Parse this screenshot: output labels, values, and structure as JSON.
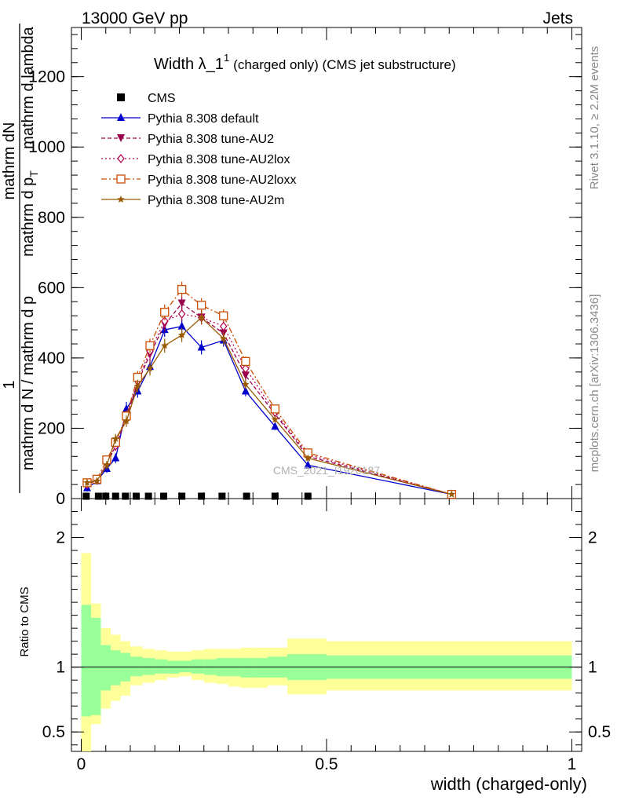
{
  "header": {
    "left": "13000 GeV pp",
    "right": "Jets"
  },
  "side_texts": {
    "rivet": "Rivet 3.1.10, ≥ 2.2M events",
    "mcplots": "mcplots.cern.ch [arXiv:1306.3436]"
  },
  "watermark": "CMS_2021_I1920187",
  "chart_data": {
    "type": "line",
    "title_main": "Width λ_1",
    "title_sup": "1",
    "title_sub": "(charged only) (CMS jet substructure)",
    "xlabel": "width (charged-only)",
    "ylabel": {
      "numer_1": "1",
      "numer_2": "mathrm dN",
      "denom_1": "mathrm d N / mathrm d p",
      "denom_2": "mathrm d p",
      "denom_3": "mathrm d lambda",
      "pt_text": "mathrm d p",
      "pt_sub": "T",
      "tail_text": "mathrm d lambda"
    },
    "ratio_ylabel": "Ratio to CMS",
    "xlim": [
      -0.02,
      1.02
    ],
    "ylim": [
      0,
      1340
    ],
    "ratio_ylim": [
      0.35,
      2.3
    ],
    "main_yticks": [
      0,
      200,
      400,
      600,
      800,
      1000,
      1200
    ],
    "main_ytick_labels": [
      "0",
      "200",
      "400",
      "600",
      "800",
      "1000",
      "1200"
    ],
    "ratio_yticks": [
      0.5,
      1,
      2
    ],
    "ratio_ytick_labels": [
      "0.5",
      "1",
      "2"
    ],
    "xticks": [
      0,
      0.5,
      1
    ],
    "xtick_labels": [
      "0",
      "0.5",
      "1"
    ],
    "bins": [
      0.0,
      0.02,
      0.04,
      0.06,
      0.08,
      0.1,
      0.125,
      0.15,
      0.175,
      0.2,
      0.225,
      0.25,
      0.275,
      0.3,
      0.325,
      0.35,
      0.38,
      0.42,
      0.5,
      1.0
    ],
    "x": [
      0.01,
      0.03,
      0.05,
      0.07,
      0.09,
      0.1125,
      0.1375,
      0.1625,
      0.1875,
      0.2125,
      0.2375,
      0.2625,
      0.2875,
      0.3125,
      0.3375,
      0.365,
      0.4,
      0.46,
      0.75
    ],
    "cms_values": [
      2,
      2,
      2,
      2,
      3,
      3,
      3,
      3,
      3,
      3,
      3,
      3,
      3,
      3,
      3,
      3,
      2,
      2,
      1
    ],
    "series": [
      {
        "name": "CMS",
        "color": "#000000",
        "marker": "square-filled",
        "x": [
          0.01,
          0.035,
          0.05,
          0.07,
          0.09,
          0.112,
          0.137,
          0.168,
          0.205,
          0.245,
          0.287,
          0.337,
          0.395,
          0.462
        ],
        "values": [
          2,
          2,
          2,
          2,
          3,
          3,
          3,
          3,
          3,
          3,
          3,
          3,
          2,
          2
        ]
      },
      {
        "name": "Pythia 8.308 default",
        "color": "#0000cc",
        "marker": "triangle-up-filled",
        "dash": "",
        "x": [
          0.012,
          0.032,
          0.052,
          0.07,
          0.092,
          0.115,
          0.14,
          0.17,
          0.205,
          0.245,
          0.29,
          0.335,
          0.395,
          0.462,
          0.755
        ],
        "values": [
          30,
          50,
          85,
          115,
          255,
          305,
          375,
          480,
          490,
          430,
          450,
          305,
          205,
          95,
          12
        ],
        "errors": [
          10,
          10,
          12,
          14,
          20,
          18,
          20,
          20,
          20,
          20,
          18,
          14,
          10,
          8,
          3
        ]
      },
      {
        "name": "Pythia 8.308 tune-AU2",
        "color": "#99004c",
        "marker": "triangle-down-filled",
        "dash": "5,3",
        "x": [
          0.012,
          0.032,
          0.052,
          0.07,
          0.092,
          0.115,
          0.14,
          0.17,
          0.205,
          0.245,
          0.29,
          0.335,
          0.395,
          0.462,
          0.755
        ],
        "values": [
          42,
          52,
          98,
          150,
          230,
          330,
          410,
          495,
          555,
          515,
          470,
          350,
          240,
          120,
          12
        ],
        "errors": [
          10,
          10,
          12,
          14,
          16,
          18,
          20,
          20,
          20,
          20,
          18,
          14,
          10,
          8,
          3
        ]
      },
      {
        "name": "Pythia 8.308 tune-AU2lox",
        "color": "#b3004c",
        "marker": "diamond-open",
        "dash": "2,3",
        "x": [
          0.012,
          0.032,
          0.052,
          0.07,
          0.092,
          0.115,
          0.14,
          0.17,
          0.205,
          0.245,
          0.29,
          0.335,
          0.395,
          0.462,
          0.755
        ],
        "values": [
          40,
          52,
          100,
          150,
          230,
          335,
          420,
          505,
          525,
          515,
          490,
          370,
          245,
          125,
          12
        ],
        "errors": [
          10,
          10,
          12,
          14,
          16,
          18,
          20,
          20,
          20,
          20,
          18,
          14,
          10,
          8,
          3
        ]
      },
      {
        "name": "Pythia 8.308 tune-AU2loxx",
        "color": "#cc4c00",
        "marker": "square-open",
        "dash": "7,3,2,3",
        "x": [
          0.012,
          0.032,
          0.052,
          0.07,
          0.092,
          0.115,
          0.14,
          0.17,
          0.205,
          0.245,
          0.29,
          0.335,
          0.395,
          0.462,
          0.755
        ],
        "values": [
          45,
          55,
          110,
          160,
          235,
          345,
          435,
          530,
          595,
          550,
          520,
          390,
          255,
          130,
          12
        ],
        "errors": [
          10,
          10,
          12,
          14,
          16,
          18,
          20,
          22,
          22,
          20,
          18,
          14,
          10,
          8,
          3
        ]
      },
      {
        "name": "Pythia 8.308 tune-AU2m",
        "color": "#995900",
        "marker": "star",
        "dash": "",
        "x": [
          0.012,
          0.032,
          0.052,
          0.07,
          0.092,
          0.115,
          0.14,
          0.17,
          0.205,
          0.245,
          0.29,
          0.335,
          0.395,
          0.462,
          0.755
        ],
        "values": [
          45,
          50,
          95,
          170,
          220,
          320,
          370,
          435,
          465,
          515,
          455,
          325,
          225,
          115,
          12
        ],
        "errors": [
          10,
          10,
          12,
          14,
          16,
          18,
          20,
          20,
          20,
          20,
          18,
          14,
          10,
          8,
          3
        ]
      }
    ],
    "ratio_band_total": {
      "color": "#ffff99",
      "lo": [
        0.32,
        0.56,
        0.68,
        0.74,
        0.78,
        0.86,
        0.88,
        0.9,
        0.92,
        0.93,
        0.9,
        0.88,
        0.87,
        0.85,
        0.84,
        0.84,
        0.86,
        0.79,
        0.82
      ],
      "hi": [
        1.88,
        1.49,
        1.3,
        1.25,
        1.2,
        1.16,
        1.14,
        1.13,
        1.12,
        1.12,
        1.13,
        1.14,
        1.14,
        1.14,
        1.15,
        1.15,
        1.15,
        1.22,
        1.2
      ]
    },
    "ratio_band_stat": {
      "color": "#99ff99",
      "lo": [
        0.62,
        0.63,
        0.82,
        0.86,
        0.89,
        0.93,
        0.94,
        0.95,
        0.95,
        0.96,
        0.95,
        0.94,
        0.93,
        0.93,
        0.92,
        0.92,
        0.92,
        0.9,
        0.91
      ],
      "hi": [
        1.48,
        1.38,
        1.17,
        1.13,
        1.11,
        1.08,
        1.07,
        1.06,
        1.05,
        1.05,
        1.06,
        1.06,
        1.07,
        1.07,
        1.07,
        1.07,
        1.08,
        1.1,
        1.09
      ]
    },
    "legend_position": "top-left",
    "grid": false
  }
}
